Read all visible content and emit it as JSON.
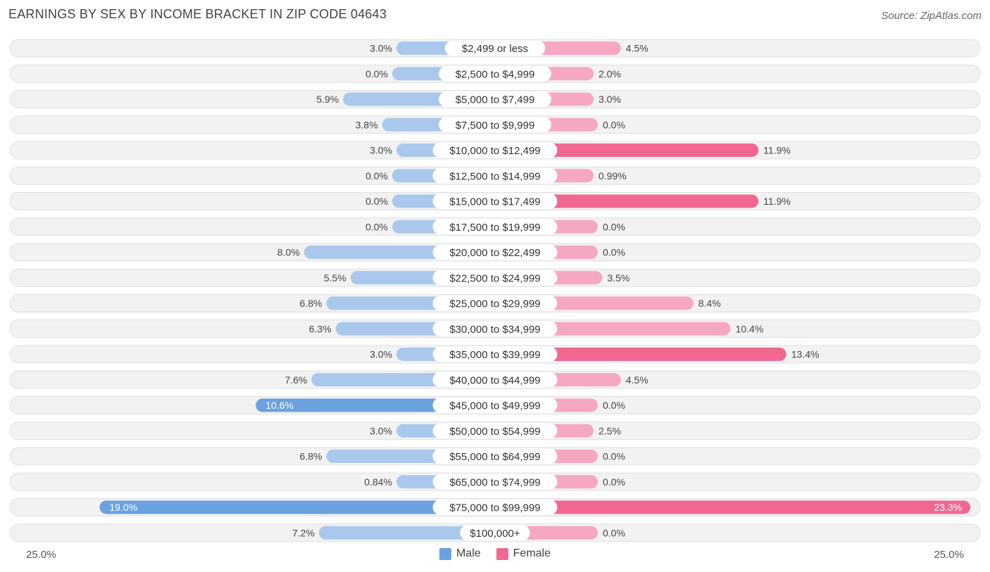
{
  "title": "EARNINGS BY SEX BY INCOME BRACKET IN ZIP CODE 04643",
  "source": "Source: ZipAtlas.com",
  "axis": {
    "left_label": "25.0%",
    "right_label": "25.0%"
  },
  "legend": {
    "male": "Male",
    "female": "Female"
  },
  "colors": {
    "male_strong": "#6ba1de",
    "male_light": "#a9c8ec",
    "female_strong": "#f06892",
    "female_light": "#f6a8c1",
    "row_bg": "#f2f2f2",
    "row_border": "#e0e0e0"
  },
  "chart_data": {
    "type": "bar",
    "orientation": "horizontal-diverging",
    "xlim": [
      -25,
      25
    ],
    "categories": [
      "$2,499 or less",
      "$2,500 to $4,999",
      "$5,000 to $7,499",
      "$7,500 to $9,999",
      "$10,000 to $12,499",
      "$12,500 to $14,999",
      "$15,000 to $17,499",
      "$17,500 to $19,999",
      "$20,000 to $22,499",
      "$22,500 to $24,999",
      "$25,000 to $29,999",
      "$30,000 to $34,999",
      "$35,000 to $39,999",
      "$40,000 to $44,999",
      "$45,000 to $49,999",
      "$50,000 to $54,999",
      "$55,000 to $64,999",
      "$65,000 to $74,999",
      "$75,000 to $99,999",
      "$100,000+"
    ],
    "series": [
      {
        "name": "Male",
        "values": [
          3.0,
          0.0,
          5.9,
          3.8,
          3.0,
          0.0,
          0.0,
          0.0,
          8.0,
          5.5,
          6.8,
          6.3,
          3.0,
          7.6,
          10.6,
          3.0,
          6.8,
          0.84,
          19.0,
          7.2
        ],
        "labels": [
          "3.0%",
          "0.0%",
          "5.9%",
          "3.8%",
          "3.0%",
          "0.0%",
          "0.0%",
          "0.0%",
          "8.0%",
          "5.5%",
          "6.8%",
          "6.3%",
          "3.0%",
          "7.6%",
          "10.6%",
          "3.0%",
          "6.8%",
          "0.84%",
          "19.0%",
          "7.2%"
        ]
      },
      {
        "name": "Female",
        "values": [
          4.5,
          2.0,
          3.0,
          0.0,
          11.9,
          0.99,
          11.9,
          0.0,
          0.0,
          3.5,
          8.4,
          10.4,
          13.4,
          4.5,
          0.0,
          2.5,
          0.0,
          0.0,
          23.3,
          0.0
        ],
        "labels": [
          "4.5%",
          "2.0%",
          "3.0%",
          "0.0%",
          "11.9%",
          "0.99%",
          "11.9%",
          "0.0%",
          "0.0%",
          "3.5%",
          "8.4%",
          "10.4%",
          "13.4%",
          "4.5%",
          "0.0%",
          "2.5%",
          "0.0%",
          "0.0%",
          "23.3%",
          "0.0%"
        ]
      }
    ]
  }
}
